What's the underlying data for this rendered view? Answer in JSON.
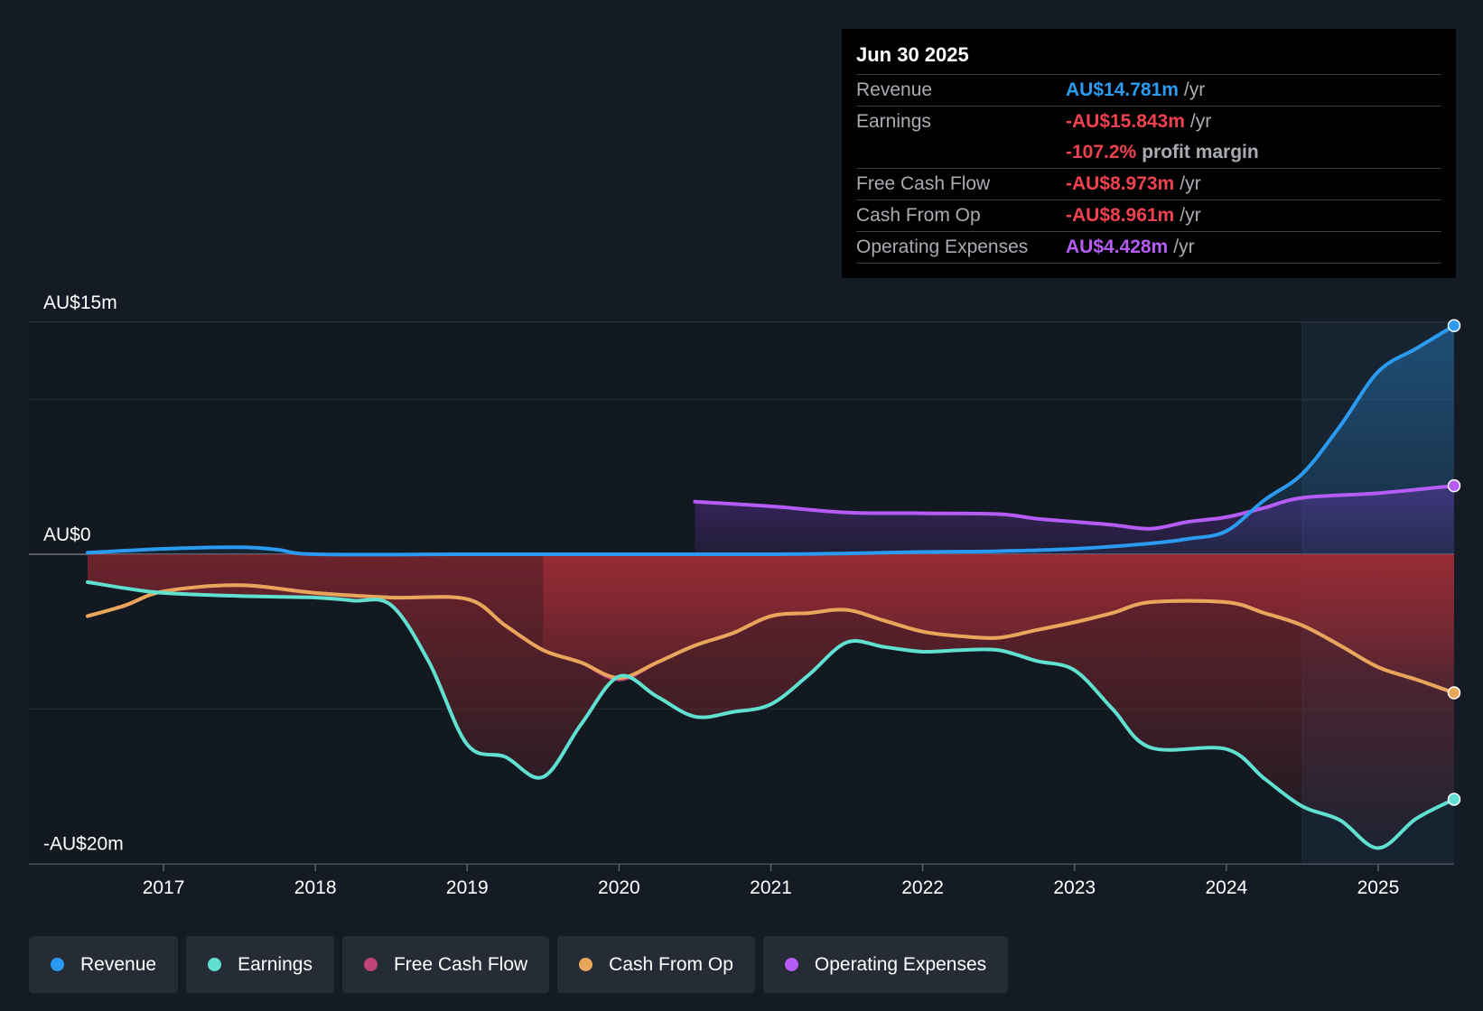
{
  "tooltip": {
    "date": "Jun 30 2025",
    "rows": [
      {
        "label": "Revenue",
        "value": "AU$14.781m",
        "unit": "/yr"
      },
      {
        "label": "Earnings",
        "value": "-AU$15.843m",
        "unit": "/yr"
      },
      {
        "label": "",
        "value": "-107.2%",
        "unit": "profit margin"
      },
      {
        "label": "Free Cash Flow",
        "value": "-AU$8.973m",
        "unit": "/yr"
      },
      {
        "label": "Cash From Op",
        "value": "-AU$8.961m",
        "unit": "/yr"
      },
      {
        "label": "Operating Expenses",
        "value": "AU$4.428m",
        "unit": "/yr"
      }
    ]
  },
  "legend": [
    {
      "label": "Revenue",
      "color": "#2a9bf0"
    },
    {
      "label": "Earnings",
      "color": "#5fe0d0"
    },
    {
      "label": "Free Cash Flow",
      "color": "#c0437a"
    },
    {
      "label": "Cash From Op",
      "color": "#e8a65a"
    },
    {
      "label": "Operating Expenses",
      "color": "#b45cf5"
    }
  ],
  "chart_data": {
    "type": "line",
    "title": "",
    "xlabel": "",
    "ylabel": "",
    "xlim": [
      2016.5,
      2025.5
    ],
    "ylim": [
      -20,
      15
    ],
    "y_tick_labels": [
      {
        "value": 15,
        "label": "AU$15m"
      },
      {
        "value": 0,
        "label": "AU$0"
      },
      {
        "value": -20,
        "label": "-AU$20m"
      }
    ],
    "x_ticks": [
      2017,
      2018,
      2019,
      2020,
      2021,
      2022,
      2023,
      2024,
      2025
    ],
    "x_tick_labels": [
      "2017",
      "2018",
      "2019",
      "2020",
      "2021",
      "2022",
      "2023",
      "2024",
      "2025"
    ],
    "highlight_start": 2024.5,
    "series": [
      {
        "name": "Revenue",
        "color": "#2a9bf0",
        "points": [
          [
            2016.5,
            0.1
          ],
          [
            2017.0,
            0.35
          ],
          [
            2017.5,
            0.45
          ],
          [
            2017.75,
            0.3
          ],
          [
            2018.0,
            0
          ],
          [
            2019.0,
            0
          ],
          [
            2020.0,
            0
          ],
          [
            2021.0,
            0
          ],
          [
            2021.5,
            0.05
          ],
          [
            2022.0,
            0.15
          ],
          [
            2022.5,
            0.2
          ],
          [
            2023.0,
            0.35
          ],
          [
            2023.5,
            0.7
          ],
          [
            2023.75,
            1.0
          ],
          [
            2024.0,
            1.5
          ],
          [
            2024.25,
            3.5
          ],
          [
            2024.5,
            5.2
          ],
          [
            2024.75,
            8.3
          ],
          [
            2025.0,
            11.8
          ],
          [
            2025.25,
            13.3
          ],
          [
            2025.5,
            14.781
          ]
        ]
      },
      {
        "name": "Earnings",
        "color": "#5fe0d0",
        "points": [
          [
            2016.5,
            -1.8
          ],
          [
            2016.75,
            -2.2
          ],
          [
            2017.0,
            -2.5
          ],
          [
            2017.5,
            -2.7
          ],
          [
            2018.0,
            -2.8
          ],
          [
            2018.25,
            -3.0
          ],
          [
            2018.5,
            -3.3
          ],
          [
            2018.75,
            -7.0
          ],
          [
            2019.0,
            -12.3
          ],
          [
            2019.25,
            -13.1
          ],
          [
            2019.5,
            -14.4
          ],
          [
            2019.75,
            -11.0
          ],
          [
            2020.0,
            -7.9
          ],
          [
            2020.25,
            -9.2
          ],
          [
            2020.5,
            -10.5
          ],
          [
            2020.75,
            -10.2
          ],
          [
            2021.0,
            -9.7
          ],
          [
            2021.25,
            -7.8
          ],
          [
            2021.5,
            -5.7
          ],
          [
            2021.75,
            -6.0
          ],
          [
            2022.0,
            -6.3
          ],
          [
            2022.25,
            -6.2
          ],
          [
            2022.5,
            -6.2
          ],
          [
            2022.75,
            -6.9
          ],
          [
            2023.0,
            -7.5
          ],
          [
            2023.25,
            -10.0
          ],
          [
            2023.5,
            -12.5
          ],
          [
            2024.0,
            -12.6
          ],
          [
            2024.25,
            -14.5
          ],
          [
            2024.5,
            -16.3
          ],
          [
            2024.75,
            -17.2
          ],
          [
            2025.0,
            -19.0
          ],
          [
            2025.25,
            -17.1
          ],
          [
            2025.5,
            -15.843
          ]
        ]
      },
      {
        "name": "Free Cash Flow",
        "color": "#c0437a",
        "points": [
          [
            2016.5,
            -4.0
          ],
          [
            2016.75,
            -3.3
          ],
          [
            2017.0,
            -2.4
          ],
          [
            2017.5,
            -2.0
          ],
          [
            2018.0,
            -2.5
          ],
          [
            2018.5,
            -2.8
          ],
          [
            2019.0,
            -2.9
          ],
          [
            2019.25,
            -4.6
          ],
          [
            2019.5,
            -6.2
          ],
          [
            2019.75,
            -7.0
          ],
          [
            2020.0,
            -8.1
          ],
          [
            2020.25,
            -7.0
          ],
          [
            2020.5,
            -5.9
          ],
          [
            2020.75,
            -5.1
          ],
          [
            2021.0,
            -4.0
          ],
          [
            2021.25,
            -3.8
          ],
          [
            2021.5,
            -3.6
          ],
          [
            2021.75,
            -4.3
          ],
          [
            2022.0,
            -5.0
          ],
          [
            2022.25,
            -5.3
          ],
          [
            2022.5,
            -5.4
          ],
          [
            2022.75,
            -4.9
          ],
          [
            2023.0,
            -4.4
          ],
          [
            2023.25,
            -3.8
          ],
          [
            2023.5,
            -3.1
          ],
          [
            2024.0,
            -3.1
          ],
          [
            2024.25,
            -3.8
          ],
          [
            2024.5,
            -4.6
          ],
          [
            2024.75,
            -5.9
          ],
          [
            2025.0,
            -7.3
          ],
          [
            2025.25,
            -8.1
          ],
          [
            2025.5,
            -8.973
          ]
        ]
      },
      {
        "name": "Cash From Op",
        "color": "#e8a65a",
        "points": [
          [
            2016.5,
            -4.0
          ],
          [
            2016.75,
            -3.3
          ],
          [
            2017.0,
            -2.4
          ],
          [
            2017.5,
            -2.0
          ],
          [
            2018.0,
            -2.5
          ],
          [
            2018.5,
            -2.8
          ],
          [
            2019.0,
            -2.9
          ],
          [
            2019.25,
            -4.6
          ],
          [
            2019.5,
            -6.2
          ],
          [
            2019.75,
            -7.0
          ],
          [
            2020.0,
            -8.0
          ],
          [
            2020.25,
            -7.0
          ],
          [
            2020.5,
            -5.9
          ],
          [
            2020.75,
            -5.1
          ],
          [
            2021.0,
            -4.0
          ],
          [
            2021.25,
            -3.8
          ],
          [
            2021.5,
            -3.6
          ],
          [
            2021.75,
            -4.3
          ],
          [
            2022.0,
            -5.0
          ],
          [
            2022.25,
            -5.3
          ],
          [
            2022.5,
            -5.4
          ],
          [
            2022.75,
            -4.9
          ],
          [
            2023.0,
            -4.4
          ],
          [
            2023.25,
            -3.8
          ],
          [
            2023.5,
            -3.1
          ],
          [
            2024.0,
            -3.1
          ],
          [
            2024.25,
            -3.8
          ],
          [
            2024.5,
            -4.6
          ],
          [
            2024.75,
            -5.9
          ],
          [
            2025.0,
            -7.3
          ],
          [
            2025.25,
            -8.1
          ],
          [
            2025.5,
            -8.961
          ]
        ]
      },
      {
        "name": "Operating Expenses",
        "color": "#b45cf5",
        "points": [
          [
            2020.5,
            3.4
          ],
          [
            2021.0,
            3.1
          ],
          [
            2021.5,
            2.7
          ],
          [
            2022.0,
            2.65
          ],
          [
            2022.5,
            2.6
          ],
          [
            2022.75,
            2.3
          ],
          [
            2023.0,
            2.1
          ],
          [
            2023.25,
            1.9
          ],
          [
            2023.5,
            1.65
          ],
          [
            2023.75,
            2.1
          ],
          [
            2024.0,
            2.4
          ],
          [
            2024.25,
            3.0
          ],
          [
            2024.5,
            3.65
          ],
          [
            2025.0,
            3.95
          ],
          [
            2025.5,
            4.428
          ]
        ]
      }
    ]
  }
}
